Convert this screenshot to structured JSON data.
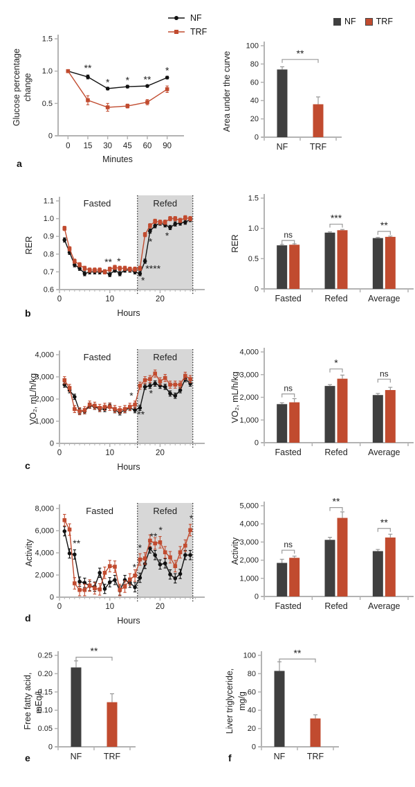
{
  "colors": {
    "nf_bar": "#3f3f3f",
    "nf_line": "#111111",
    "trf": "#c14b2f",
    "shade": "#d7d7d7",
    "axis": "#b3b3b3",
    "errbar_gray": "#8f8f8f",
    "bracket": "#9a9a9a"
  },
  "panels": {
    "a": {
      "letter": "a"
    },
    "b": {
      "letter": "b"
    },
    "c": {
      "letter": "c"
    },
    "d": {
      "letter": "d"
    },
    "e": {
      "letter": "e"
    },
    "f": {
      "letter": "f"
    }
  },
  "legend": {
    "line": [
      {
        "label": "NF",
        "color": "#111111",
        "marker": "circle"
      },
      {
        "label": "TRF",
        "color": "#c14b2f",
        "marker": "square"
      }
    ],
    "bar": [
      {
        "label": "NF",
        "color": "#3f3f3f"
      },
      {
        "label": "TRF",
        "color": "#c14b2f"
      }
    ]
  },
  "chart_data": [
    {
      "id": "a_line",
      "type": "line",
      "xlabel": "Minutes",
      "ylabel": [
        "Glucose percentage",
        "change"
      ],
      "x_categories": [
        "0",
        "15",
        "30",
        "45",
        "60",
        "90"
      ],
      "ylim": [
        0,
        1.5
      ],
      "yticks": [
        {
          "v": 0,
          "label": "0"
        },
        {
          "v": 0.5,
          "label": "0.5"
        },
        {
          "v": 1.0,
          "label": "1.0"
        },
        {
          "v": 1.5,
          "label": "1.5"
        }
      ],
      "series": [
        {
          "name": "NF",
          "color": "#111111",
          "marker": "circle",
          "y": [
            1.0,
            0.91,
            0.73,
            0.76,
            0.77,
            0.9
          ],
          "err": [
            0.01,
            0.03,
            0.02,
            0.02,
            0.015,
            0.02
          ]
        },
        {
          "name": "TRF",
          "color": "#c14b2f",
          "marker": "square",
          "y": [
            1.0,
            0.55,
            0.44,
            0.46,
            0.52,
            0.72
          ],
          "err": [
            0.01,
            0.07,
            0.06,
            0.03,
            0.04,
            0.05
          ]
        }
      ],
      "annotations": [
        {
          "x": 1,
          "y": 1.04,
          "t": "**"
        },
        {
          "x": 2,
          "y": 0.82,
          "t": "*"
        },
        {
          "x": 3,
          "y": 0.85,
          "t": "*"
        },
        {
          "x": 4,
          "y": 0.86,
          "t": "**"
        },
        {
          "x": 5,
          "y": 1.0,
          "t": "*"
        }
      ]
    },
    {
      "id": "a_bar",
      "type": "pairbar",
      "ylabel": [
        "Area under the curve"
      ],
      "categories": [
        "NF",
        "TRF"
      ],
      "values": [
        74,
        36
      ],
      "errors": [
        3,
        8
      ],
      "colors": [
        "#3f3f3f",
        "#c14b2f"
      ],
      "ylim": [
        0,
        100
      ],
      "yticks": [
        {
          "v": 0,
          "label": "0"
        },
        {
          "v": 20,
          "label": "20"
        },
        {
          "v": 40,
          "label": "40"
        },
        {
          "v": 60,
          "label": "60"
        },
        {
          "v": 80,
          "label": "80"
        },
        {
          "v": 100,
          "label": "100"
        }
      ],
      "sig": {
        "label": "**",
        "y": 85
      }
    },
    {
      "id": "b_line",
      "type": "line",
      "xlabel": "Hours",
      "ylabel": [
        "RER"
      ],
      "xlim": [
        0,
        27.5
      ],
      "ylim": [
        0.6,
        1.1
      ],
      "xticks": [
        {
          "v": 0,
          "label": "0"
        },
        {
          "v": 10,
          "label": "10"
        },
        {
          "v": 20,
          "label": "20"
        }
      ],
      "minor_to": 27,
      "yticks": [
        {
          "v": 0.6,
          "label": "0.6"
        },
        {
          "v": 0.7,
          "label": "0.7"
        },
        {
          "v": 0.8,
          "label": "0.8"
        },
        {
          "v": 0.9,
          "label": "0.9"
        },
        {
          "v": 1.0,
          "label": "1.0"
        },
        {
          "v": 1.1,
          "label": "1.1"
        }
      ],
      "shade": {
        "x0": 15.5,
        "x1": 26.5
      },
      "region_labels": [
        {
          "x": 7.5,
          "label": "Fasted"
        },
        {
          "x": 21,
          "label": "Refed"
        }
      ],
      "x": [
        1,
        2,
        3,
        4,
        5,
        6,
        7,
        8,
        9,
        10,
        11,
        12,
        13,
        14,
        15,
        16,
        17,
        18,
        19,
        20,
        21,
        22,
        23,
        24,
        25,
        26
      ],
      "series": [
        {
          "name": "NF",
          "color": "#111111",
          "marker": "circle",
          "err": 0.012,
          "y": [
            0.88,
            0.81,
            0.74,
            0.72,
            0.69,
            0.7,
            0.7,
            0.7,
            0.7,
            0.685,
            0.71,
            0.69,
            0.71,
            0.71,
            0.7,
            0.69,
            0.76,
            0.93,
            0.96,
            0.975,
            0.965,
            0.95,
            0.97,
            0.975,
            0.98,
            0.995
          ]
        },
        {
          "name": "TRF",
          "color": "#c14b2f",
          "marker": "square",
          "err": 0.012,
          "y": [
            0.945,
            0.83,
            0.76,
            0.74,
            0.72,
            0.71,
            0.71,
            0.71,
            0.7,
            0.715,
            0.725,
            0.72,
            0.72,
            0.715,
            0.715,
            0.72,
            0.91,
            0.96,
            0.985,
            0.98,
            0.98,
            1.0,
            1.0,
            0.99,
            1.005,
            1.0
          ]
        }
      ],
      "annotations": [
        {
          "x": 9.7,
          "y": 0.752,
          "t": "**"
        },
        {
          "x": 11.8,
          "y": 0.757,
          "t": "*"
        },
        {
          "x": 17.9,
          "y": 0.912,
          "t": "*"
        },
        {
          "x": 18.1,
          "y": 0.868,
          "t": "*"
        },
        {
          "x": 21.4,
          "y": 0.9,
          "t": "*"
        },
        {
          "x": 18.6,
          "y": 0.716,
          "t": "****"
        },
        {
          "x": 16.6,
          "y": 0.648,
          "t": "*"
        }
      ]
    },
    {
      "id": "b_bar",
      "type": "bar",
      "ylabel": [
        "RER"
      ],
      "categories": [
        "Fasted",
        "Refed",
        "Average"
      ],
      "ylim": [
        0,
        1.5
      ],
      "yticks": [
        {
          "v": 0,
          "label": "0"
        },
        {
          "v": 0.5,
          "label": "0.5"
        },
        {
          "v": 1.0,
          "label": "1.0"
        },
        {
          "v": 1.5,
          "label": "1.5"
        }
      ],
      "series": [
        {
          "name": "NF",
          "color": "#3f3f3f",
          "values": [
            0.72,
            0.93,
            0.84
          ],
          "errors": [
            0.015,
            0.012,
            0.012
          ]
        },
        {
          "name": "TRF",
          "color": "#c14b2f",
          "values": [
            0.73,
            0.97,
            0.86
          ],
          "errors": [
            0.015,
            0.012,
            0.012
          ]
        }
      ],
      "sig": [
        {
          "cat": 0,
          "label": "ns",
          "y": 0.8
        },
        {
          "cat": 1,
          "label": "***",
          "y": 1.07
        },
        {
          "cat": 2,
          "label": "**",
          "y": 0.95
        }
      ]
    },
    {
      "id": "c_line",
      "type": "line",
      "xlabel": "Hours",
      "ylabel": [
        "VO₂, mL/h/kg"
      ],
      "xlim": [
        0,
        27.5
      ],
      "ylim": [
        0,
        4000
      ],
      "xticks": [
        {
          "v": 0,
          "label": "0"
        },
        {
          "v": 10,
          "label": "10"
        },
        {
          "v": 20,
          "label": "20"
        }
      ],
      "minor_to": 27,
      "yticks": [
        {
          "v": 0,
          "label": "0"
        },
        {
          "v": 1000,
          "label": "1,000"
        },
        {
          "v": 2000,
          "label": "2,000"
        },
        {
          "v": 3000,
          "label": "3,000"
        },
        {
          "v": 4000,
          "label": "4,000"
        }
      ],
      "shade": {
        "x0": 15.5,
        "x1": 26.5
      },
      "region_labels": [
        {
          "x": 7.5,
          "label": "Fasted"
        },
        {
          "x": 21,
          "label": "Refed"
        }
      ],
      "x": [
        1,
        2,
        3,
        4,
        5,
        6,
        7,
        8,
        9,
        10,
        11,
        12,
        13,
        14,
        15,
        16,
        17,
        18,
        19,
        20,
        21,
        22,
        23,
        24,
        25,
        26
      ],
      "series": [
        {
          "name": "NF",
          "color": "#111111",
          "marker": "circle",
          "err": 120,
          "y": [
            2650,
            2400,
            2100,
            1450,
            1450,
            1700,
            1650,
            1550,
            1550,
            1700,
            1500,
            1400,
            1500,
            1600,
            1500,
            1600,
            2550,
            2600,
            2700,
            2600,
            2550,
            2250,
            2150,
            2400,
            2900,
            2700
          ]
        },
        {
          "name": "TRF",
          "color": "#c14b2f",
          "marker": "square",
          "err": 160,
          "y": [
            2850,
            2500,
            1550,
            1450,
            1500,
            1750,
            1700,
            1600,
            1650,
            1650,
            1550,
            1500,
            1550,
            1650,
            1750,
            2600,
            2850,
            2900,
            3150,
            2800,
            2950,
            2650,
            2650,
            2650,
            3050,
            2900
          ]
        }
      ],
      "annotations": [
        {
          "x": 14.3,
          "y": 2130,
          "t": "*"
        },
        {
          "x": 16.2,
          "y": 1280,
          "t": "**"
        },
        {
          "x": 18.2,
          "y": 2230,
          "t": "*"
        }
      ]
    },
    {
      "id": "c_bar",
      "type": "bar",
      "ylabel": [
        "VO₂, mL/h/kg"
      ],
      "categories": [
        "Fasted",
        "Refed",
        "Average"
      ],
      "ylim": [
        0,
        4000
      ],
      "yticks": [
        {
          "v": 0,
          "label": "0"
        },
        {
          "v": 1000,
          "label": "1,000"
        },
        {
          "v": 2000,
          "label": "2,000"
        },
        {
          "v": 3000,
          "label": "3,000"
        },
        {
          "v": 4000,
          "label": "4,000"
        }
      ],
      "series": [
        {
          "name": "NF",
          "color": "#3f3f3f",
          "values": [
            1700,
            2500,
            2100
          ],
          "errors": [
            60,
            60,
            70
          ]
        },
        {
          "name": "TRF",
          "color": "#c14b2f",
          "values": [
            1780,
            2820,
            2320
          ],
          "errors": [
            160,
            160,
            120
          ]
        }
      ],
      "sig": [
        {
          "cat": 0,
          "label": "ns",
          "y": 2150
        },
        {
          "cat": 1,
          "label": "*",
          "y": 3250
        },
        {
          "cat": 2,
          "label": "ns",
          "y": 2800
        }
      ]
    },
    {
      "id": "d_line",
      "type": "line",
      "xlabel": "Hours",
      "ylabel": [
        "Activity"
      ],
      "xlim": [
        0,
        27.5
      ],
      "ylim": [
        0,
        8000
      ],
      "xticks": [
        {
          "v": 0,
          "label": "0"
        },
        {
          "v": 10,
          "label": "10"
        },
        {
          "v": 20,
          "label": "20"
        }
      ],
      "minor_to": 27,
      "yticks": [
        {
          "v": 0,
          "label": "0"
        },
        {
          "v": 2000,
          "label": "2,000"
        },
        {
          "v": 4000,
          "label": "4,000"
        },
        {
          "v": 6000,
          "label": "6,000"
        },
        {
          "v": 8000,
          "label": "8,000"
        }
      ],
      "shade": {
        "x0": 15.5,
        "x1": 26.5
      },
      "region_labels": [
        {
          "x": 8,
          "label": "Fasted"
        },
        {
          "x": 21,
          "label": "Refed"
        }
      ],
      "x": [
        1,
        2,
        3,
        4,
        5,
        6,
        7,
        8,
        9,
        10,
        11,
        12,
        13,
        14,
        15,
        16,
        17,
        18,
        19,
        20,
        21,
        22,
        23,
        24,
        25,
        26
      ],
      "series": [
        {
          "name": "NF",
          "color": "#111111",
          "marker": "circle",
          "err": 420,
          "y": [
            5950,
            3950,
            3850,
            1400,
            1300,
            1000,
            950,
            2200,
            750,
            1350,
            1550,
            600,
            1550,
            1300,
            900,
            1750,
            3000,
            4400,
            3800,
            2950,
            3050,
            2050,
            1700,
            2100,
            3800,
            3800
          ]
        },
        {
          "name": "TRF",
          "color": "#c14b2f",
          "marker": "square",
          "err": 520,
          "y": [
            6950,
            6100,
            1250,
            650,
            650,
            1050,
            800,
            700,
            2200,
            2800,
            2750,
            650,
            950,
            1600,
            1950,
            3400,
            3500,
            5100,
            4850,
            4950,
            4050,
            3600,
            2800,
            4050,
            4650,
            6050
          ]
        }
      ],
      "annotations": [
        {
          "x": 3.4,
          "y": 4800,
          "t": "**"
        },
        {
          "x": 14.9,
          "y": 2650,
          "t": "*"
        },
        {
          "x": 16.0,
          "y": 4400,
          "t": "*"
        },
        {
          "x": 18.7,
          "y": 5450,
          "t": "**"
        },
        {
          "x": 20.1,
          "y": 6000,
          "t": "*"
        },
        {
          "x": 26.2,
          "y": 7050,
          "t": "*"
        }
      ]
    },
    {
      "id": "d_bar",
      "type": "bar",
      "ylabel": [
        "Activity"
      ],
      "categories": [
        "Fasted",
        "Refed",
        "Average"
      ],
      "ylim": [
        0,
        5000
      ],
      "yticks": [
        {
          "v": 0,
          "label": "0"
        },
        {
          "v": 1000,
          "label": "1,000"
        },
        {
          "v": 2000,
          "label": "2,000"
        },
        {
          "v": 3000,
          "label": "3,000"
        },
        {
          "v": 4000,
          "label": "4,000"
        },
        {
          "v": 5000,
          "label": "5,000"
        }
      ],
      "series": [
        {
          "name": "NF",
          "color": "#3f3f3f",
          "values": [
            1850,
            3120,
            2500
          ],
          "errors": [
            200,
            140,
            90
          ]
        },
        {
          "name": "TRF",
          "color": "#c14b2f",
          "values": [
            2130,
            4330,
            3250
          ],
          "errors": [
            90,
            330,
            180
          ]
        }
      ],
      "sig": [
        {
          "cat": 0,
          "label": "ns",
          "y": 2550
        },
        {
          "cat": 1,
          "label": "**",
          "y": 4900
        },
        {
          "cat": 2,
          "label": "**",
          "y": 3750
        }
      ]
    },
    {
      "id": "e_bar",
      "type": "pairbar",
      "ylabel": [
        "Free fatty acid,",
        "mEq/L"
      ],
      "categories": [
        "NF",
        "TRF"
      ],
      "values": [
        0.217,
        0.122
      ],
      "errors": [
        0.018,
        0.023
      ],
      "colors": [
        "#3f3f3f",
        "#c14b2f"
      ],
      "ylim": [
        0,
        0.25
      ],
      "yticks": [
        {
          "v": 0,
          "label": "0"
        },
        {
          "v": 0.05,
          "label": "0.05"
        },
        {
          "v": 0.1,
          "label": "0.10"
        },
        {
          "v": 0.15,
          "label": "0.15"
        },
        {
          "v": 0.2,
          "label": "0.20"
        },
        {
          "v": 0.25,
          "label": "0.25"
        }
      ],
      "sig": {
        "label": "**",
        "y": 0.245
      }
    },
    {
      "id": "f_bar",
      "type": "pairbar",
      "ylabel": [
        "Liver triglyceride,",
        "mg/g"
      ],
      "categories": [
        "NF",
        "TRF"
      ],
      "values": [
        83,
        31
      ],
      "errors": [
        10,
        4
      ],
      "colors": [
        "#3f3f3f",
        "#c14b2f"
      ],
      "ylim": [
        0,
        100
      ],
      "yticks": [
        {
          "v": 0,
          "label": "0"
        },
        {
          "v": 20,
          "label": "20"
        },
        {
          "v": 40,
          "label": "40"
        },
        {
          "v": 60,
          "label": "60"
        },
        {
          "v": 80,
          "label": "80"
        },
        {
          "v": 100,
          "label": "100"
        }
      ],
      "sig": {
        "label": "**",
        "y": 96
      }
    }
  ]
}
